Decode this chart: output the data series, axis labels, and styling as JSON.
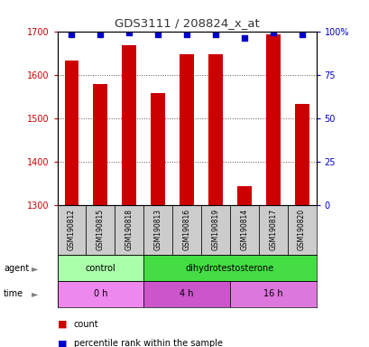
{
  "title": "GDS3111 / 208824_x_at",
  "samples": [
    "GSM190812",
    "GSM190815",
    "GSM190818",
    "GSM190813",
    "GSM190816",
    "GSM190819",
    "GSM190814",
    "GSM190817",
    "GSM190820"
  ],
  "counts": [
    1632,
    1578,
    1668,
    1558,
    1648,
    1648,
    1342,
    1692,
    1532
  ],
  "percentile_ranks": [
    98,
    98,
    99,
    98,
    98,
    98,
    96,
    99,
    98
  ],
  "ylim_left": [
    1300,
    1700
  ],
  "ylim_right": [
    0,
    100
  ],
  "yticks_left": [
    1300,
    1400,
    1500,
    1600,
    1700
  ],
  "yticks_right": [
    0,
    25,
    50,
    75,
    100
  ],
  "ytick_labels_right": [
    "0",
    "25",
    "50",
    "75",
    "100%"
  ],
  "bar_color": "#cc0000",
  "dot_color": "#0000cc",
  "bar_width": 0.5,
  "agent_groups": [
    {
      "label": "control",
      "start": 0,
      "end": 3,
      "color": "#aaffaa"
    },
    {
      "label": "dihydrotestosterone",
      "start": 3,
      "end": 9,
      "color": "#44dd44"
    }
  ],
  "time_groups": [
    {
      "label": "0 h",
      "start": 0,
      "end": 3,
      "color": "#ee88ee"
    },
    {
      "label": "4 h",
      "start": 3,
      "end": 6,
      "color": "#cc55cc"
    },
    {
      "label": "16 h",
      "start": 6,
      "end": 9,
      "color": "#dd77dd"
    }
  ],
  "grid_color": "#555555",
  "bg_color": "#ffffff",
  "tick_label_color_left": "#cc0000",
  "tick_label_color_right": "#0000cc",
  "title_color": "#333333",
  "sample_bg_color": "#cccccc"
}
